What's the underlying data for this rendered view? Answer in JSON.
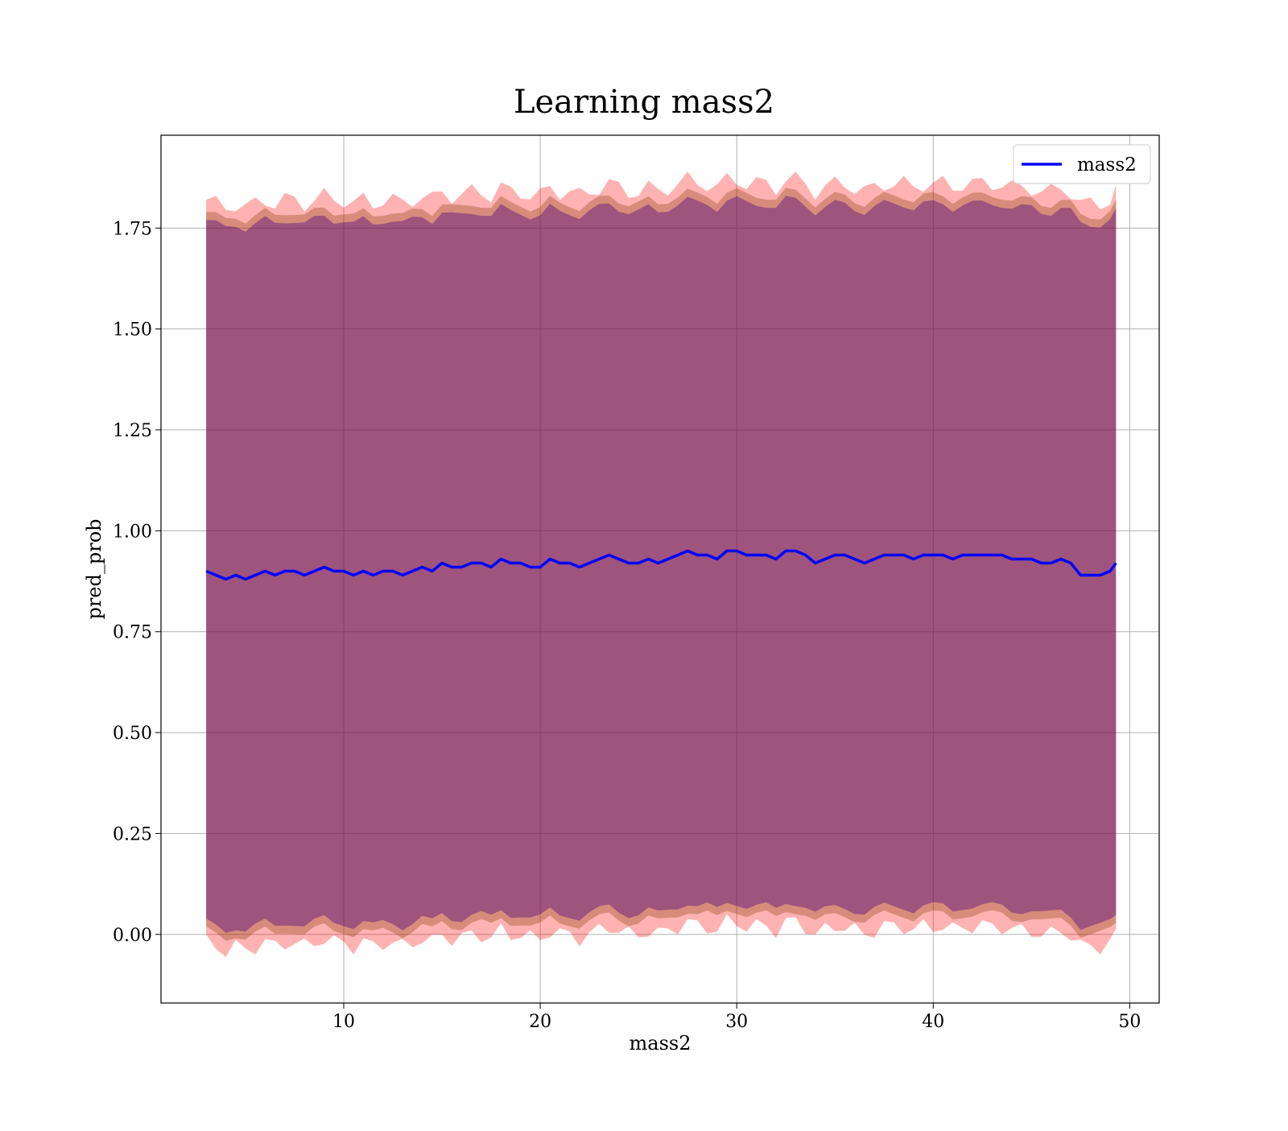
{
  "chart_data": {
    "type": "line",
    "title": "Learning mass2",
    "xlabel": "mass2",
    "ylabel": "pred_prob",
    "xlim": [
      0.7,
      51.5
    ],
    "ylim": [
      -0.17,
      1.98
    ],
    "x_ticks": [
      10,
      20,
      30,
      40,
      50
    ],
    "y_ticks": [
      0.0,
      0.25,
      0.5,
      0.75,
      1.0,
      1.25,
      1.5,
      1.75
    ],
    "x_tick_labels": [
      "10",
      "20",
      "30",
      "40",
      "50"
    ],
    "y_tick_labels": [
      "0.00",
      "0.25",
      "0.50",
      "0.75",
      "1.00",
      "1.25",
      "1.50",
      "1.75"
    ],
    "grid": true,
    "legend": {
      "position": "top-right",
      "entries": [
        "mass2"
      ]
    },
    "colors": {
      "line": "#0000ff",
      "band_outer": "#ff0000",
      "band_inner": "#8b4513",
      "band_core": "#4b0082"
    },
    "series": [
      {
        "name": "mass2",
        "x": [
          3.0,
          3.5,
          4.0,
          4.5,
          5.0,
          5.5,
          6.0,
          6.5,
          7.0,
          7.5,
          8.0,
          8.5,
          9.0,
          9.5,
          10.0,
          10.5,
          11.0,
          11.5,
          12.0,
          12.5,
          13.0,
          13.5,
          14.0,
          14.5,
          15.0,
          15.5,
          16.0,
          16.5,
          17.0,
          17.5,
          18.0,
          18.5,
          19.0,
          19.5,
          20.0,
          20.5,
          21.0,
          21.5,
          22.0,
          22.5,
          23.0,
          23.5,
          24.0,
          24.5,
          25.0,
          25.5,
          26.0,
          26.5,
          27.0,
          27.5,
          28.0,
          28.5,
          29.0,
          29.5,
          30.0,
          30.5,
          31.0,
          31.5,
          32.0,
          32.5,
          33.0,
          33.5,
          34.0,
          34.5,
          35.0,
          35.5,
          36.0,
          36.5,
          37.0,
          37.5,
          38.0,
          38.5,
          39.0,
          39.5,
          40.0,
          40.5,
          41.0,
          41.5,
          42.0,
          42.5,
          43.0,
          43.5,
          44.0,
          44.5,
          45.0,
          45.5,
          46.0,
          46.5,
          47.0,
          47.5,
          48.0,
          48.5,
          49.0,
          49.3
        ],
        "y": [
          0.9,
          0.89,
          0.88,
          0.89,
          0.88,
          0.89,
          0.9,
          0.89,
          0.9,
          0.9,
          0.89,
          0.9,
          0.91,
          0.9,
          0.9,
          0.89,
          0.9,
          0.89,
          0.9,
          0.9,
          0.89,
          0.9,
          0.91,
          0.9,
          0.92,
          0.91,
          0.91,
          0.92,
          0.92,
          0.91,
          0.93,
          0.92,
          0.92,
          0.91,
          0.91,
          0.93,
          0.92,
          0.92,
          0.91,
          0.92,
          0.93,
          0.94,
          0.93,
          0.92,
          0.92,
          0.93,
          0.92,
          0.93,
          0.94,
          0.95,
          0.94,
          0.94,
          0.93,
          0.95,
          0.95,
          0.94,
          0.94,
          0.94,
          0.93,
          0.95,
          0.95,
          0.94,
          0.92,
          0.93,
          0.94,
          0.94,
          0.93,
          0.92,
          0.93,
          0.94,
          0.94,
          0.94,
          0.93,
          0.94,
          0.94,
          0.94,
          0.93,
          0.94,
          0.94,
          0.94,
          0.94,
          0.94,
          0.93,
          0.93,
          0.93,
          0.92,
          0.92,
          0.93,
          0.92,
          0.89,
          0.89,
          0.89,
          0.9,
          0.92
        ]
      }
    ],
    "bands": [
      {
        "name": "outer",
        "color": "#ff0000",
        "upper_offset": 0.92,
        "lower_offset": -0.92
      },
      {
        "name": "middle",
        "color": "#8b4513",
        "upper_offset": 0.89,
        "lower_offset": -0.89
      },
      {
        "name": "inner",
        "color": "#4b0082",
        "upper_offset": 0.87,
        "lower_offset": -0.87
      }
    ]
  }
}
